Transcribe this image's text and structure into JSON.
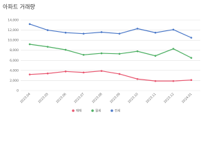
{
  "chart_data": {
    "type": "line",
    "title": "아파트 거래량",
    "categories": [
      "2023.04",
      "2023.05",
      "2023.06",
      "2023.07",
      "2023.08",
      "2023.09",
      "2023.10",
      "2023.11",
      "2023.12",
      "2024.01"
    ],
    "series": [
      {
        "name": "매매",
        "color": "#e8566f",
        "values": [
          3200,
          3400,
          3800,
          3600,
          3900,
          3300,
          2300,
          1900,
          1900,
          2100
        ]
      },
      {
        "name": "월세",
        "color": "#4caf62",
        "values": [
          9200,
          8700,
          8100,
          7100,
          7400,
          7300,
          7800,
          6900,
          8300,
          6500
        ]
      },
      {
        "name": "전세",
        "color": "#4a78c8",
        "values": [
          13200,
          12000,
          11500,
          11300,
          11600,
          11300,
          12300,
          11500,
          12100,
          10500
        ]
      }
    ],
    "ylim": [
      0,
      14000
    ],
    "yticks": [
      0,
      {
        "value": 2000,
        "label": "2,000"
      },
      {
        "value": 4000,
        "label": "4,000"
      },
      {
        "value": 6000,
        "label": "6,000"
      },
      {
        "value": 8000,
        "label": "8,000"
      },
      {
        "value": 10000,
        "label": "10,000"
      },
      {
        "value": 12000,
        "label": "12,000"
      },
      {
        "value": 14000,
        "label": "14,000"
      }
    ],
    "grid": true
  }
}
